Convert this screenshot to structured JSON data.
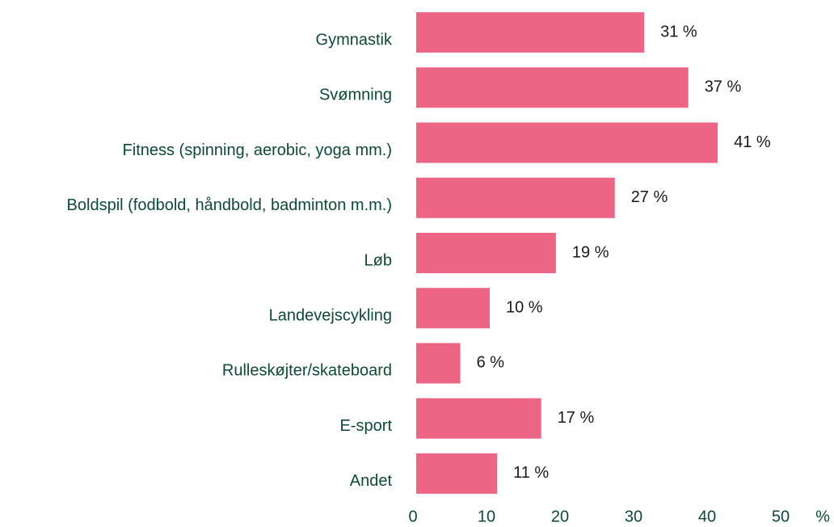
{
  "chart_data": {
    "type": "barh",
    "categories": [
      "Gymnastik",
      "Svømning",
      "Fitness (spinning, aerobic, yoga mm.)",
      "Boldspil (fodbold, håndbold, badminton m.m.)",
      "Løb",
      "Landevejscykling",
      "Rulleskøjter/skateboard",
      "E-sport",
      "Andet"
    ],
    "values": [
      31,
      37,
      41,
      27,
      19,
      10,
      6,
      17,
      11
    ],
    "value_labels": [
      "31 %",
      "37 %",
      "41 %",
      "27 %",
      "19 %",
      "10 %",
      "6 %",
      "17 %",
      "11 %"
    ],
    "color": "#ec6584",
    "xlabel": "%",
    "xlim": [
      0,
      50
    ],
    "xticks": [
      0,
      10,
      20,
      30,
      40,
      50
    ],
    "grid": false
  }
}
